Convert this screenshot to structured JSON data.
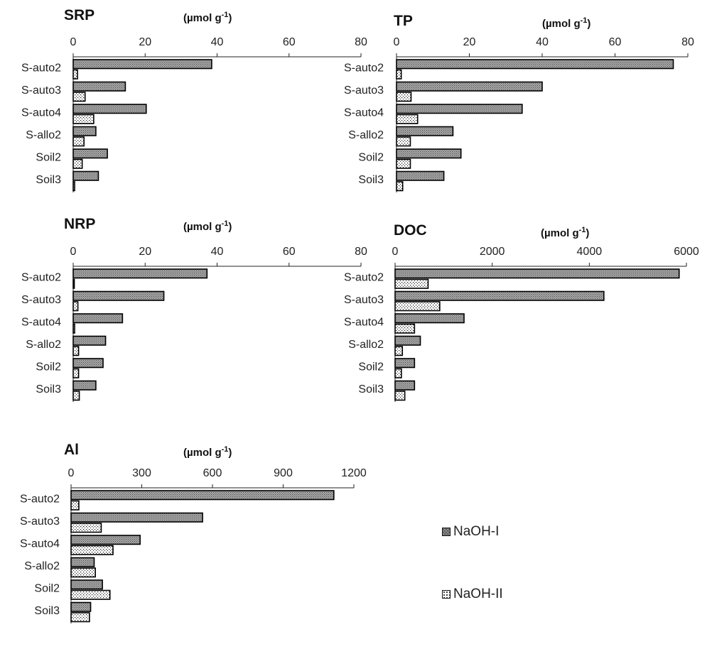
{
  "legend": {
    "series1": "NaOH-I",
    "series2": "NaOH-II"
  },
  "colors": {
    "naoh1_fill": "#9a9a9a",
    "naoh2_fill": "#ffffff",
    "bar_outline": "#000000"
  },
  "chart_data": [
    {
      "type": "bar",
      "orientation": "horizontal",
      "title": "SRP",
      "unit_label": "(µmol g-1)",
      "categories": [
        "S-auto2",
        "S-auto3",
        "S-auto4",
        "S-allo2",
        "Soil2",
        "Soil3"
      ],
      "series": [
        {
          "name": "NaOH-I",
          "values": [
            38.5,
            14.5,
            20.3,
            6.3,
            9.5,
            7.0
          ]
        },
        {
          "name": "NaOH-II",
          "values": [
            1.2,
            3.3,
            5.7,
            3.0,
            2.5,
            0.4
          ]
        }
      ],
      "xlim": [
        0,
        80
      ],
      "ticks": [
        "0",
        "20",
        "40",
        "60",
        "80"
      ],
      "axis_position": "top"
    },
    {
      "type": "bar",
      "orientation": "horizontal",
      "title": "TP",
      "unit_label": "(µmol g-1)",
      "categories": [
        "S-auto2",
        "S-auto3",
        "S-auto4",
        "S-allo2",
        "Soil2",
        "Soil3"
      ],
      "series": [
        {
          "name": "NaOH-I",
          "values": [
            76,
            40,
            34.5,
            15.5,
            17.7,
            13.0
          ]
        },
        {
          "name": "NaOH-II",
          "values": [
            1.3,
            4.0,
            5.8,
            3.8,
            3.8,
            1.7
          ]
        }
      ],
      "xlim": [
        0,
        80
      ],
      "ticks": [
        "0",
        "20",
        "40",
        "60",
        "80"
      ],
      "axis_position": "top"
    },
    {
      "type": "bar",
      "orientation": "horizontal",
      "title": "NRP",
      "unit_label": "(µmol g-1)",
      "categories": [
        "S-auto2",
        "S-auto3",
        "S-auto4",
        "S-allo2",
        "Soil2",
        "Soil3"
      ],
      "series": [
        {
          "name": "NaOH-I",
          "values": [
            37.2,
            25.2,
            13.7,
            9.0,
            8.3,
            6.3
          ]
        },
        {
          "name": "NaOH-II",
          "values": [
            0.3,
            1.3,
            0.4,
            1.5,
            1.5,
            1.7
          ]
        }
      ],
      "xlim": [
        0,
        80
      ],
      "ticks": [
        "0",
        "20",
        "40",
        "60",
        "80"
      ],
      "axis_position": "top"
    },
    {
      "type": "bar",
      "orientation": "horizontal",
      "title": "DOC",
      "unit_label": "(µmol g-1)",
      "categories": [
        "S-auto2",
        "S-auto3",
        "S-auto4",
        "S-allo2",
        "Soil2",
        "Soil3"
      ],
      "series": [
        {
          "name": "NaOH-I",
          "values": [
            5850,
            4300,
            1420,
            520,
            400,
            400
          ]
        },
        {
          "name": "NaOH-II",
          "values": [
            680,
            920,
            400,
            150,
            130,
            200
          ]
        }
      ],
      "xlim": [
        0,
        6000
      ],
      "ticks": [
        "0",
        "2000",
        "4000",
        "6000"
      ],
      "axis_position": "top"
    },
    {
      "type": "bar",
      "orientation": "horizontal",
      "title": "Al",
      "unit_label": "(µmol g-1)",
      "categories": [
        "S-auto2",
        "S-auto3",
        "S-auto4",
        "S-allo2",
        "Soil2",
        "Soil3"
      ],
      "series": [
        {
          "name": "NaOH-I",
          "values": [
            1115,
            558,
            293,
            98,
            133,
            83
          ]
        },
        {
          "name": "NaOH-II",
          "values": [
            33,
            128,
            178,
            103,
            165,
            78
          ]
        }
      ],
      "xlim": [
        0,
        1200
      ],
      "ticks": [
        "0",
        "300",
        "600",
        "900",
        "1200"
      ],
      "axis_position": "top"
    }
  ]
}
